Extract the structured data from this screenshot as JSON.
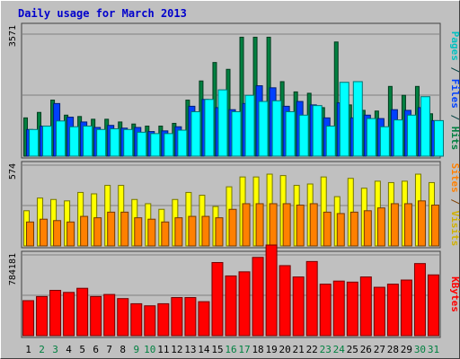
{
  "chart_data": {
    "title": "Daily usage for March 2013",
    "type": "bar",
    "days": [
      "1",
      "2",
      "3",
      "4",
      "5",
      "6",
      "7",
      "8",
      "9",
      "10",
      "11",
      "12",
      "13",
      "14",
      "15",
      "16",
      "17",
      "18",
      "19",
      "20",
      "21",
      "22",
      "23",
      "24",
      "25",
      "26",
      "27",
      "28",
      "29",
      "30",
      "31"
    ],
    "weekend_days": [
      "2",
      "3",
      "9",
      "10",
      "16",
      "17",
      "23",
      "24",
      "30",
      "31"
    ],
    "panels": [
      {
        "id": "hits",
        "ytick": "3571",
        "ymax": 3571,
        "series": [
          {
            "name": "Hits",
            "color": "#008040",
            "values": [
              1120,
              1280,
              1640,
              1200,
              1160,
              1080,
              1080,
              1000,
              940,
              880,
              880,
              960,
              1640,
              2200,
              2740,
              2540,
              3480,
              3480,
              3480,
              2180,
              1880,
              1840,
              1420,
              3340,
              1500,
              1340,
              1320,
              2040,
              1780,
              2040,
              1240
            ]
          },
          {
            "name": "Files",
            "color": "#0040ff",
            "values": [
              780,
              880,
              1540,
              1140,
              1000,
              840,
              900,
              820,
              840,
              720,
              740,
              860,
              1460,
              1660,
              1420,
              1360,
              1540,
              2060,
              2000,
              1460,
              1600,
              1500,
              1120,
              1560,
              1120,
              1200,
              1100,
              1360,
              1340,
              1420,
              1040
            ]
          },
          {
            "name": "Pages",
            "color": "#00ffff",
            "values": [
              780,
              880,
              1030,
              860,
              880,
              780,
              800,
              780,
              700,
              660,
              660,
              760,
              1300,
              1660,
              1940,
              1300,
              1780,
              1600,
              1620,
              1300,
              1200,
              1480,
              880,
              2160,
              2180,
              1100,
              860,
              1060,
              1200,
              1740,
              1040
            ]
          }
        ],
        "label_parts": [
          {
            "text": "Pages",
            "color": "#00c0c0"
          },
          {
            "text": " / ",
            "color": "#004040"
          },
          {
            "text": "Files",
            "color": "#0040ff"
          },
          {
            "text": " / ",
            "color": "#004040"
          },
          {
            "text": "Hits",
            "color": "#008040"
          }
        ]
      },
      {
        "id": "visits",
        "ytick": "574",
        "ymax": 574,
        "series": [
          {
            "name": "Visits",
            "color": "#ffff00",
            "values": [
              250,
              340,
              330,
              320,
              380,
              370,
              430,
              430,
              330,
              300,
              260,
              330,
              380,
              360,
              280,
              420,
              490,
              490,
              510,
              500,
              430,
              440,
              490,
              350,
              480,
              410,
              460,
              450,
              460,
              510,
              450
            ]
          },
          {
            "name": "Sites",
            "color": "#ff8000",
            "values": [
              170,
              190,
              180,
              170,
              210,
              200,
              240,
              240,
              200,
              190,
              170,
              200,
              210,
              210,
              200,
              260,
              300,
              300,
              300,
              300,
              290,
              300,
              240,
              230,
              240,
              250,
              270,
              300,
              300,
              320,
              290
            ]
          }
        ],
        "label_parts": [
          {
            "text": "Sites",
            "color": "#ff8000"
          },
          {
            "text": " / ",
            "color": "#804000"
          },
          {
            "text": "Visits",
            "color": "#d0b000"
          }
        ]
      },
      {
        "id": "kbytes",
        "ytick": "784181",
        "ymax": 784181,
        "series": [
          {
            "name": "KBytes",
            "color": "#ff0000",
            "values": [
              340000,
              380000,
              440000,
              420000,
              460000,
              380000,
              400000,
              360000,
              310000,
              290000,
              310000,
              370000,
              370000,
              330000,
              710000,
              580000,
              620000,
              760000,
              880000,
              680000,
              570000,
              720000,
              500000,
              530000,
              520000,
              570000,
              470000,
              500000,
              540000,
              700000,
              590000
            ]
          }
        ],
        "label_parts": [
          {
            "text": "KBytes",
            "color": "#ff0000"
          }
        ]
      }
    ]
  }
}
